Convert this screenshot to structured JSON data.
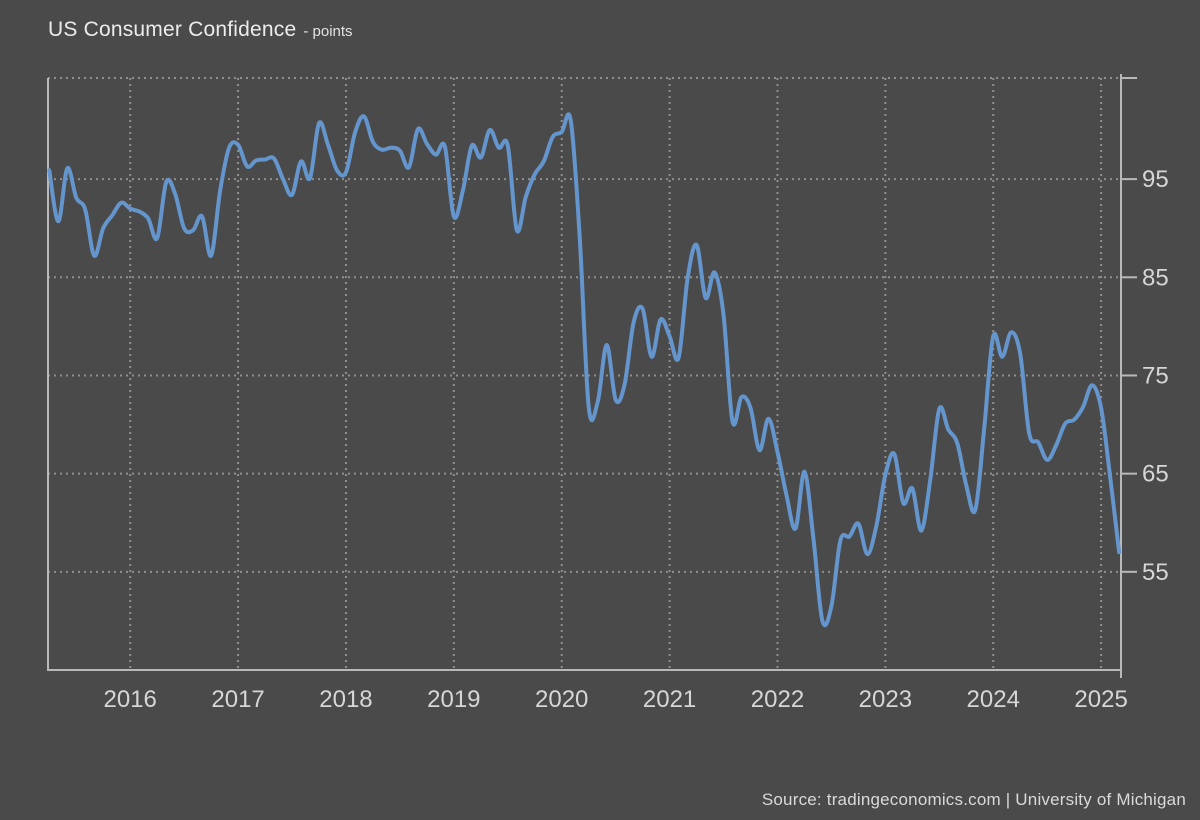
{
  "header": {
    "title": "US Consumer Confidence",
    "subtitle": "- points"
  },
  "footer": {
    "source": "Source: tradingeconomics.com | University of Michigan"
  },
  "chart_data": {
    "type": "line",
    "title": "US Consumer Confidence",
    "unit": "points",
    "frequency": "monthly",
    "x_start_month": "2015-04",
    "x_end_month": "2025-03",
    "x_tick_labels": [
      "2016",
      "2017",
      "2018",
      "2019",
      "2020",
      "2021",
      "2022",
      "2023",
      "2024",
      "2025"
    ],
    "y_ticks": [
      95,
      85,
      75,
      65,
      55
    ],
    "ylim": [
      45,
      105.3
    ],
    "grid": "dotted",
    "legend": "none",
    "colors": {
      "background": "#4a4a4a",
      "line": "#6495cd",
      "grid": "#8f8f8f",
      "axis": "#b9b9b9",
      "title_text": "#ececec",
      "tick_text": "#d6d6d6",
      "source_text": "#d9d9d9"
    },
    "series": [
      {
        "name": "University of Michigan Consumer Sentiment",
        "values": [
          95.9,
          90.7,
          96.1,
          93.1,
          91.9,
          87.2,
          90.0,
          91.3,
          92.6,
          92.0,
          91.7,
          91.0,
          89.0,
          94.7,
          93.5,
          90.0,
          89.8,
          91.2,
          87.2,
          93.8,
          98.2,
          98.5,
          96.3,
          96.9,
          97.0,
          97.1,
          95.0,
          93.4,
          96.8,
          95.1,
          100.7,
          98.5,
          95.9,
          95.7,
          99.7,
          101.4,
          98.8,
          98.0,
          98.2,
          97.9,
          96.2,
          100.1,
          98.6,
          97.5,
          98.3,
          91.2,
          93.8,
          98.4,
          97.2,
          100.0,
          98.2,
          98.4,
          89.8,
          93.2,
          95.5,
          96.8,
          99.3,
          99.8,
          101.0,
          89.1,
          71.8,
          72.3,
          78.1,
          72.5,
          74.1,
          80.4,
          81.8,
          76.9,
          80.7,
          79.0,
          76.8,
          84.9,
          88.3,
          82.9,
          85.5,
          81.2,
          70.3,
          72.8,
          71.7,
          67.4,
          70.6,
          67.2,
          62.8,
          59.4,
          65.2,
          58.4,
          50.0,
          51.5,
          58.2,
          58.6,
          59.9,
          56.8,
          59.7,
          64.9,
          67.0,
          62.0,
          63.5,
          59.2,
          64.4,
          71.6,
          69.5,
          68.1,
          63.8,
          61.3,
          69.7,
          79.0,
          76.9,
          79.4,
          77.2,
          69.1,
          68.2,
          66.4,
          67.9,
          70.1,
          70.5,
          71.8,
          74.0,
          71.7,
          64.7,
          57.0
        ]
      }
    ]
  }
}
